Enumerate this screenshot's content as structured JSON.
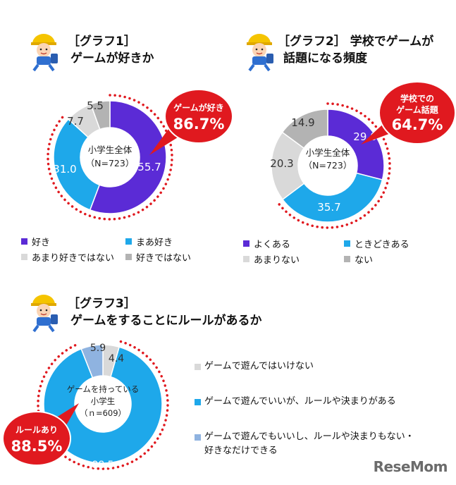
{
  "chart_data": [
    {
      "type": "pie",
      "title": "［グラフ1］ゲームが好きか",
      "center_label": [
        "小学生全体",
        "（N=723）"
      ],
      "categories": [
        "好き",
        "まあ好き",
        "あまり好きではない",
        "好きではない"
      ],
      "values": [
        55.7,
        31.0,
        7.7,
        5.5
      ],
      "value_labels": [
        "55.7",
        "31.0",
        "7.7",
        "5.5"
      ],
      "colors": [
        "#5b2bd6",
        "#1ea8ea",
        "#d9d9d9",
        "#b3b3b3"
      ],
      "callout": [
        "ゲームが好き",
        "86.7%"
      ]
    },
    {
      "type": "pie",
      "title": "［グラフ2］学校でゲームが話題になる頻度",
      "center_label": [
        "小学生全体",
        "（N=723）"
      ],
      "categories": [
        "よくある",
        "ときどきある",
        "あまりない",
        "ない"
      ],
      "values": [
        29.0,
        35.7,
        20.3,
        14.9
      ],
      "value_labels": [
        "29.0",
        "35.7",
        "20.3",
        "14.9"
      ],
      "colors": [
        "#5b2bd6",
        "#1ea8ea",
        "#d9d9d9",
        "#b3b3b3"
      ],
      "callout": [
        "学校での",
        "ゲーム話題",
        "64.7%"
      ]
    },
    {
      "type": "pie",
      "title": "［グラフ3］ゲームをすることにルールがあるか",
      "center_label": [
        "ゲームを持っている",
        "小学生",
        "（ｎ=609）"
      ],
      "categories": [
        "ゲームで遊んではいけない",
        "ゲームで遊んでいいが、ルールや決まりがある",
        "ゲームで遊んでもいいし、ルールや決まりもない・好きなだけできる"
      ],
      "values": [
        4.4,
        88.5,
        5.9
      ],
      "value_labels": [
        "4.4",
        "88.5",
        "5.9"
      ],
      "colors": [
        "#d9d9d9",
        "#1ea8ea",
        "#8fb3e0"
      ],
      "callout": [
        "ルールあり",
        "88.5%"
      ]
    }
  ],
  "page": {
    "g1_title_1": "［グラフ1］",
    "g1_title_2": "ゲームが好きか",
    "g2_title_1": "［グラフ2］ 学校でゲームが",
    "g2_title_2": "話題になる頻度",
    "g3_title_1": "［グラフ3］",
    "g3_title_2": "ゲームをすることにルールがあるか",
    "g3_legend_3a": "ゲームで遊んでもいいし、ルールや決まりもない・",
    "g3_legend_3b": "好きなだけできる",
    "watermark": "ReseMom"
  }
}
